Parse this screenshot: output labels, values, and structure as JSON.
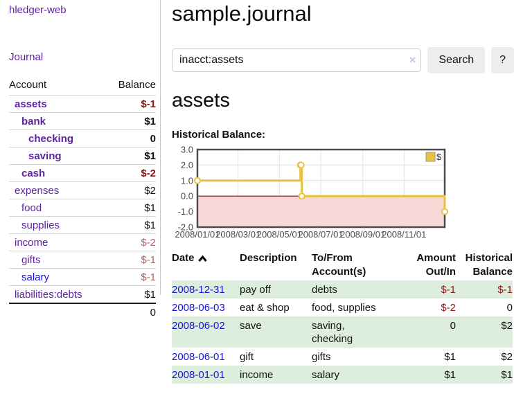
{
  "sidebar": {
    "brand": "hledger-web",
    "nav": {
      "journal": "Journal"
    },
    "accounts_table": {
      "header_account": "Account",
      "header_balance": "Balance",
      "rows": [
        {
          "name": "assets",
          "level": 1,
          "bold": true,
          "color": "purple",
          "balance": "$-1",
          "balance_bold": true,
          "balance_color": "negative"
        },
        {
          "name": "bank",
          "level": 2,
          "bold": true,
          "color": "purple",
          "balance": "$1",
          "balance_bold": true,
          "balance_color": "normal"
        },
        {
          "name": "checking",
          "level": 3,
          "bold": true,
          "color": "purple",
          "balance": "0",
          "balance_bold": true,
          "balance_color": "normal"
        },
        {
          "name": "saving",
          "level": 3,
          "bold": true,
          "color": "purple",
          "balance": "$1",
          "balance_bold": true,
          "balance_color": "normal"
        },
        {
          "name": "cash",
          "level": 2,
          "bold": true,
          "color": "purple",
          "balance": "$-2",
          "balance_bold": true,
          "balance_color": "negative"
        },
        {
          "name": "expenses",
          "level": 1,
          "bold": false,
          "color": "purple",
          "balance": "$2",
          "balance_bold": false,
          "balance_color": "normal"
        },
        {
          "name": "food",
          "level": 2,
          "bold": false,
          "color": "purple",
          "balance": "$1",
          "balance_bold": false,
          "balance_color": "normal"
        },
        {
          "name": "supplies",
          "level": 2,
          "bold": false,
          "color": "purple",
          "balance": "$1",
          "balance_bold": false,
          "balance_color": "normal"
        },
        {
          "name": "income",
          "level": 1,
          "bold": false,
          "color": "purple",
          "balance": "$-2",
          "balance_bold": false,
          "balance_color": "negative-soft"
        },
        {
          "name": "gifts",
          "level": 2,
          "bold": false,
          "color": "purple",
          "balance": "$-1",
          "balance_bold": false,
          "balance_color": "negative-soft"
        },
        {
          "name": "salary",
          "level": 2,
          "bold": false,
          "color": "blue",
          "balance": "$-1",
          "balance_bold": false,
          "balance_color": "negative-soft"
        },
        {
          "name": "liabilities:debts",
          "level": 1,
          "bold": false,
          "color": "purple",
          "balance": "$1",
          "balance_bold": false,
          "balance_color": "normal"
        }
      ],
      "total": "0"
    }
  },
  "main": {
    "title": "sample.journal",
    "search": {
      "value": "inacct:assets",
      "clear": "×",
      "button": "Search",
      "help": "?"
    },
    "account_heading": "assets",
    "chart_heading": "Historical Balance:"
  },
  "chart_data": {
    "type": "line",
    "step": true,
    "title": "Historical Balance",
    "series": [
      {
        "name": "$",
        "color": "#e9c33f",
        "points": [
          {
            "date": "2008-01-01",
            "value": 1
          },
          {
            "date": "2008-06-01",
            "value": 2
          },
          {
            "date": "2008-06-02",
            "value": 2
          },
          {
            "date": "2008-06-03",
            "value": 0
          },
          {
            "date": "2008-12-31",
            "value": -1
          }
        ]
      }
    ],
    "x_range": {
      "start": "2008-01-01",
      "end": "2008-12-31"
    },
    "x_ticks": [
      {
        "date": "2008-01-01",
        "label": "2008/01/01"
      },
      {
        "date": "2008-03-01",
        "label": "2008/03/01"
      },
      {
        "date": "2008-05-01",
        "label": "2008/05/01"
      },
      {
        "date": "2008-07-01",
        "label": "2008/07/01"
      },
      {
        "date": "2008-09-01",
        "label": "2008/09/01"
      },
      {
        "date": "2008-11-01",
        "label": "2008/11/01"
      }
    ],
    "y_ticks": [
      "3.0",
      "2.0",
      "1.0",
      "0.0",
      "-1.0",
      "-2.0"
    ],
    "ylim": [
      -2,
      3
    ],
    "grid": true,
    "legend_position": "top-right",
    "negative_region_color": "#f8d7d7",
    "zero_line_color": "#8b0000"
  },
  "register": {
    "headers": {
      "date": "Date",
      "description": "Description",
      "accounts": "To/From Account(s)",
      "amount": "Amount Out/In",
      "balance": "Historical Balance"
    },
    "sort": "ascending",
    "rows": [
      {
        "date": "2008-12-31",
        "description": "pay off",
        "accounts_lines": [
          "debts"
        ],
        "amount": "$-1",
        "amount_negative": true,
        "balance": "$-1",
        "balance_negative": true
      },
      {
        "date": "2008-06-03",
        "description": "eat & shop",
        "accounts_lines": [
          "food, supplies"
        ],
        "amount": "$-2",
        "amount_negative": true,
        "balance": "0",
        "balance_negative": false
      },
      {
        "date": "2008-06-02",
        "description": "save",
        "accounts_lines": [
          "saving,",
          "checking"
        ],
        "amount": "0",
        "amount_negative": false,
        "balance": "$2",
        "balance_negative": false
      },
      {
        "date": "2008-06-01",
        "description": "gift",
        "accounts_lines": [
          "gifts"
        ],
        "amount": "$1",
        "amount_negative": false,
        "balance": "$2",
        "balance_negative": false
      },
      {
        "date": "2008-01-01",
        "description": "income",
        "accounts_lines": [
          "salary"
        ],
        "amount": "$1",
        "amount_negative": false,
        "balance": "$1",
        "balance_negative": false
      }
    ]
  }
}
